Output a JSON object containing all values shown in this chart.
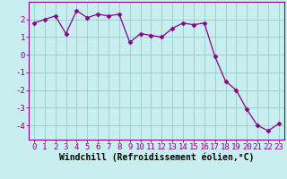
{
  "x": [
    0,
    1,
    2,
    3,
    4,
    5,
    6,
    7,
    8,
    9,
    10,
    11,
    12,
    13,
    14,
    15,
    16,
    17,
    18,
    19,
    20,
    21,
    22,
    23
  ],
  "y": [
    1.8,
    2.0,
    2.2,
    1.2,
    2.5,
    2.1,
    2.3,
    2.2,
    2.3,
    0.7,
    1.2,
    1.1,
    1.0,
    1.5,
    1.8,
    1.7,
    1.8,
    -0.1,
    -1.5,
    -2.0,
    -3.1,
    -4.0,
    -4.3,
    -3.9
  ],
  "line_color": "#880088",
  "marker": "D",
  "marker_size": 2.5,
  "bg_color": "#c8eef0",
  "grid_color": "#99cccc",
  "xlabel": "Windchill (Refroidissement éolien,°C)",
  "xlabel_fontsize": 7,
  "xtick_labels": [
    "0",
    "1",
    "2",
    "3",
    "4",
    "5",
    "6",
    "7",
    "8",
    "9",
    "10",
    "11",
    "12",
    "13",
    "14",
    "15",
    "16",
    "17",
    "18",
    "19",
    "20",
    "21",
    "22",
    "23"
  ],
  "ytick_values": [
    -4,
    -3,
    -2,
    -1,
    0,
    1,
    2
  ],
  "ylim": [
    -4.8,
    3.0
  ],
  "xlim": [
    -0.5,
    23.5
  ],
  "tick_fontsize": 6.5,
  "fig_width": 3.2,
  "fig_height": 2.0,
  "dpi": 100
}
